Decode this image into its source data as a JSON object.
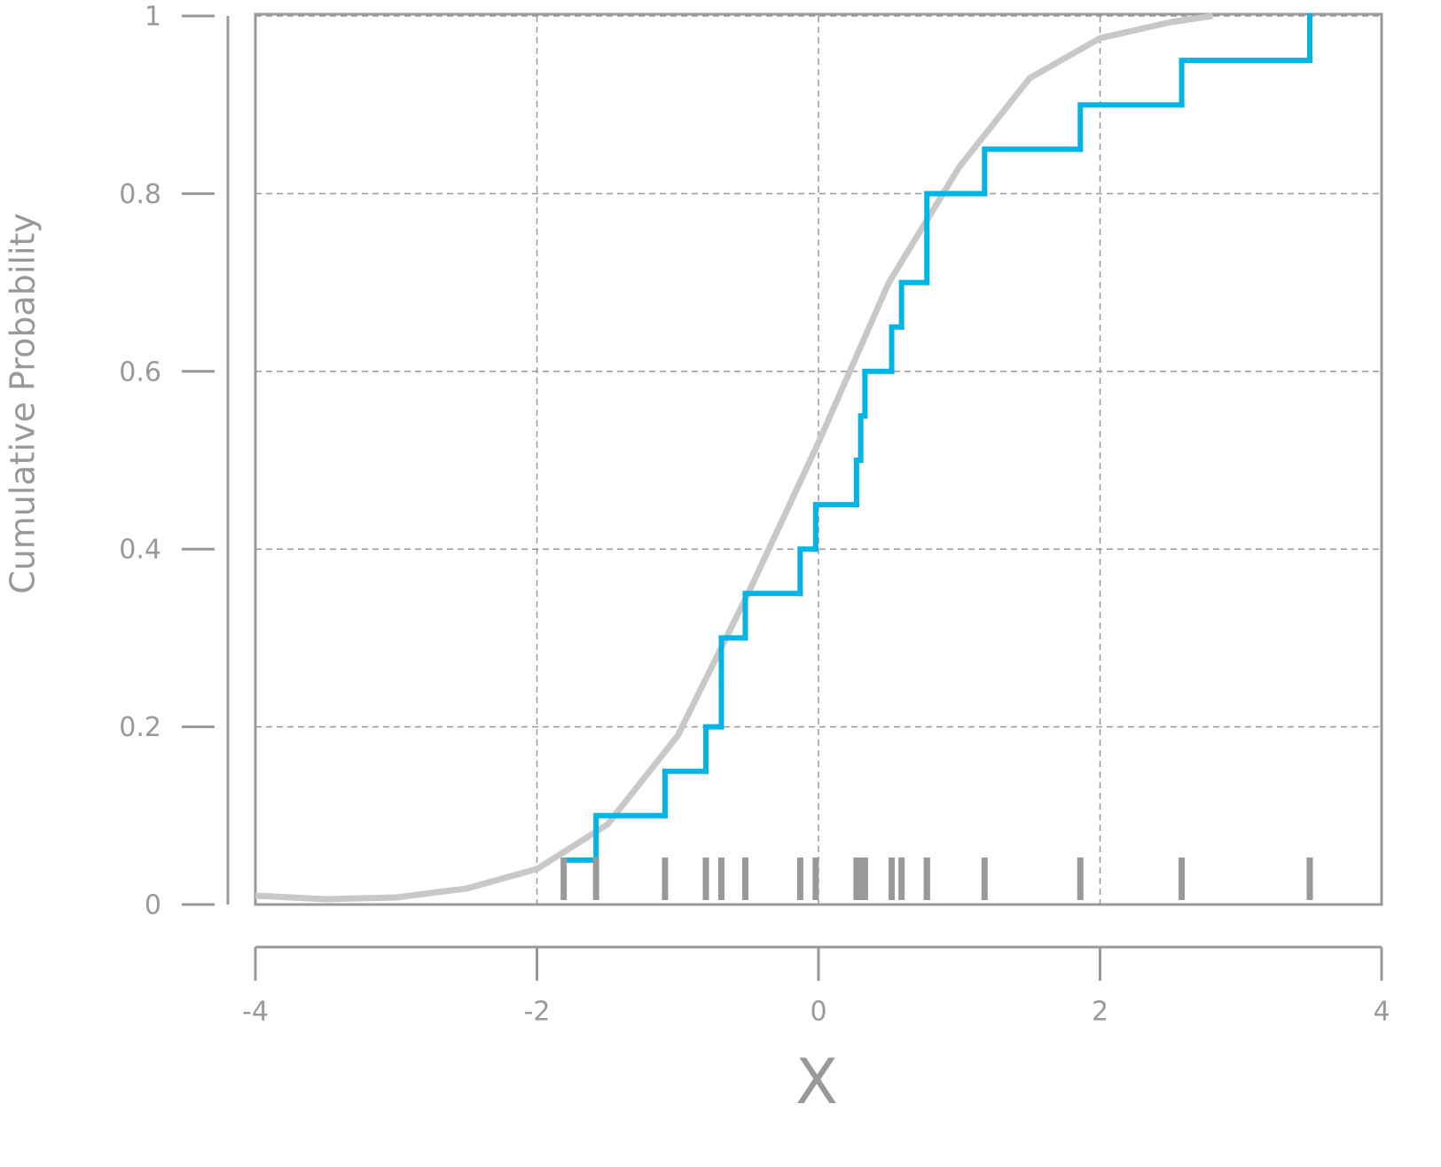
{
  "chart_data": {
    "type": "ecdf",
    "xlabel": "X",
    "ylabel": "Cumulative Probability",
    "xlim": [
      -4,
      4
    ],
    "xticks": [
      -4,
      -2,
      0,
      2,
      4
    ],
    "ylim": [
      0,
      1
    ],
    "yticks": [
      0,
      0.2,
      0.4,
      0.6,
      0.8,
      1
    ],
    "grid": true,
    "rug": true,
    "series": [
      {
        "type": "step",
        "color": "#00b4e6",
        "x": [
          -1.81,
          -1.58,
          -1.09,
          -0.8,
          -0.69,
          -0.69,
          -0.52,
          -0.13,
          -0.02,
          0.27,
          0.3,
          0.33,
          0.52,
          0.59,
          0.77,
          0.77,
          1.18,
          1.86,
          2.58,
          3.49
        ],
        "values": [
          0.05,
          0.1,
          0.15,
          0.2,
          0.25,
          0.3,
          0.35,
          0.4,
          0.45,
          0.5,
          0.55,
          0.6,
          0.65,
          0.7,
          0.75,
          0.8,
          0.85,
          0.9,
          0.95,
          1.0
        ]
      },
      {
        "type": "line",
        "color": "#c8c8c8",
        "x": [
          -4,
          -3.5,
          -3,
          -2.5,
          -2,
          -1.5,
          -1,
          -0.5,
          0,
          0.5,
          1,
          1.5,
          2,
          2.5,
          2.8
        ],
        "values": [
          0.01,
          0.006,
          0.008,
          0.018,
          0.04,
          0.09,
          0.19,
          0.35,
          0.52,
          0.7,
          0.83,
          0.93,
          0.975,
          0.993,
          1.0
        ]
      }
    ]
  }
}
